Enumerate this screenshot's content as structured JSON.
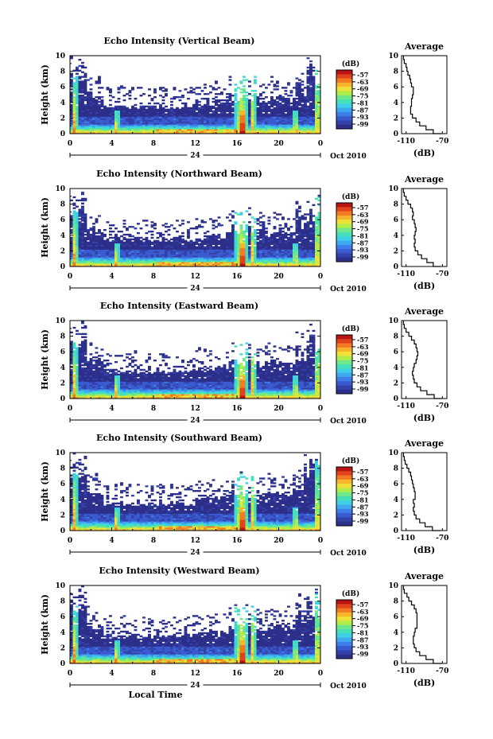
{
  "chart_data": [
    {
      "type": "heatmap",
      "title": "Echo Intensity (Vertical Beam)",
      "ylabel": "Height (km)",
      "ylim": [
        0,
        10
      ],
      "y_ticks": [
        "0",
        "2",
        "4",
        "6",
        "8",
        "10"
      ],
      "x_ticks": [
        "0",
        "4",
        "8",
        "12",
        "16",
        "20",
        "0"
      ],
      "date_marker": "24",
      "date_label": "Oct 2010",
      "colorbar": {
        "title": "(dB)",
        "ticks": [
          "-57",
          "-63",
          "-69",
          "-75",
          "-81",
          "-87",
          "-93",
          "-99"
        ]
      },
      "profile": {
        "title": "Average",
        "xlabel": "(dB)",
        "x_ticks": [
          "-110",
          "-70"
        ],
        "xlim": [
          -115,
          -65
        ],
        "heights": [
          0,
          0.5,
          1,
          1.5,
          2,
          2.5,
          3,
          3.5,
          4,
          4.5,
          5,
          5.5,
          6,
          6.5,
          7,
          7.5,
          8,
          8.5,
          9,
          9.5,
          10
        ],
        "values": [
          -71,
          -80,
          -88,
          -95,
          -99,
          -103,
          -105,
          -105,
          -104,
          -104,
          -103,
          -102,
          -102,
          -104,
          -105,
          -106,
          -108,
          -109,
          -110,
          -112,
          -113
        ]
      }
    },
    {
      "type": "heatmap",
      "title": "Echo Intensity (Northward Beam)",
      "ylabel": "Height (km)",
      "ylim": [
        0,
        10
      ],
      "y_ticks": [
        "0",
        "2",
        "4",
        "6",
        "8",
        "10"
      ],
      "x_ticks": [
        "0",
        "4",
        "8",
        "12",
        "16",
        "20",
        "0"
      ],
      "date_marker": "24",
      "date_label": "Oct 2010",
      "colorbar": {
        "title": "(dB)",
        "ticks": [
          "-57",
          "-63",
          "-69",
          "-75",
          "-81",
          "-87",
          "-93",
          "-99"
        ]
      },
      "profile": {
        "title": "Average",
        "xlabel": "(dB)",
        "x_ticks": [
          "-110",
          "-70"
        ],
        "xlim": [
          -115,
          -65
        ],
        "heights": [
          0,
          0.5,
          1,
          1.5,
          2,
          2.5,
          3,
          3.5,
          4,
          4.5,
          5,
          5.5,
          6,
          6.5,
          7,
          7.5,
          8,
          8.5,
          9,
          9.5,
          10
        ],
        "values": [
          -72,
          -80,
          -87,
          -93,
          -97,
          -100,
          -101,
          -100,
          -101,
          -100,
          -99,
          -100,
          -101,
          -103,
          -102,
          -103,
          -105,
          -108,
          -110,
          -112,
          -113
        ]
      }
    },
    {
      "type": "heatmap",
      "title": "Echo Intensity (Eastward Beam)",
      "ylabel": "Height (km)",
      "ylim": [
        0,
        10
      ],
      "y_ticks": [
        "0",
        "2",
        "4",
        "6",
        "8",
        "10"
      ],
      "x_ticks": [
        "0",
        "4",
        "8",
        "12",
        "16",
        "20",
        "0"
      ],
      "date_marker": "24",
      "date_label": "Oct 2010",
      "colorbar": {
        "title": "(dB)",
        "ticks": [
          "-57",
          "-63",
          "-69",
          "-75",
          "-81",
          "-87",
          "-93",
          "-99"
        ]
      },
      "profile": {
        "title": "Average",
        "xlabel": "(dB)",
        "x_ticks": [
          "-110",
          "-70"
        ],
        "xlim": [
          -115,
          -65
        ],
        "heights": [
          0,
          0.5,
          1,
          1.5,
          2,
          2.5,
          3,
          3.5,
          4,
          4.5,
          5,
          5.5,
          6,
          6.5,
          7,
          7.5,
          8,
          8.5,
          9,
          9.5,
          10
        ],
        "values": [
          -71,
          -79,
          -87,
          -94,
          -98,
          -101,
          -102,
          -103,
          -102,
          -101,
          -99,
          -98,
          -97,
          -98,
          -99,
          -101,
          -104,
          -107,
          -110,
          -112,
          -113
        ]
      }
    },
    {
      "type": "heatmap",
      "title": "Echo Intensity (Southward Beam)",
      "ylabel": "Height (km)",
      "ylim": [
        0,
        10
      ],
      "y_ticks": [
        "0",
        "2",
        "4",
        "6",
        "8",
        "10"
      ],
      "x_ticks": [
        "0",
        "4",
        "8",
        "12",
        "16",
        "20",
        "0"
      ],
      "date_marker": "24",
      "date_label": "Oct 2010",
      "colorbar": {
        "title": "(dB)",
        "ticks": [
          "-57",
          "-63",
          "-69",
          "-75",
          "-81",
          "-87",
          "-93",
          "-99"
        ]
      },
      "profile": {
        "title": "Average",
        "xlabel": "(dB)",
        "x_ticks": [
          "-110",
          "-70"
        ],
        "xlim": [
          -115,
          -65
        ],
        "heights": [
          0,
          0.5,
          1,
          1.5,
          2,
          2.5,
          3,
          3.5,
          4,
          4.5,
          5,
          5.5,
          6,
          6.5,
          7,
          7.5,
          8,
          8.5,
          9,
          9.5,
          10
        ],
        "values": [
          -72,
          -81,
          -89,
          -95,
          -99,
          -101,
          -102,
          -101,
          -102,
          -100,
          -100,
          -101,
          -102,
          -103,
          -104,
          -105,
          -107,
          -109,
          -111,
          -112,
          -113
        ]
      }
    },
    {
      "type": "heatmap",
      "title": "Echo Intensity (Westward Beam)",
      "ylabel": "Height (km)",
      "ylim": [
        0,
        10
      ],
      "y_ticks": [
        "0",
        "2",
        "4",
        "6",
        "8",
        "10"
      ],
      "x_ticks": [
        "0",
        "4",
        "8",
        "12",
        "16",
        "20",
        "0"
      ],
      "date_marker": "24",
      "date_label": "Oct 2010",
      "xlabel": "Local Time",
      "colorbar": {
        "title": "(dB)",
        "ticks": [
          "-57",
          "-63",
          "-69",
          "-75",
          "-81",
          "-87",
          "-93",
          "-99"
        ]
      },
      "profile": {
        "title": "Average",
        "xlabel": "(dB)",
        "x_ticks": [
          "-110",
          "-70"
        ],
        "xlim": [
          -115,
          -65
        ],
        "heights": [
          0,
          0.5,
          1,
          1.5,
          2,
          2.5,
          3,
          3.5,
          4,
          4.5,
          5,
          5.5,
          6,
          6.5,
          7,
          7.5,
          8,
          8.5,
          9,
          9.5,
          10
        ],
        "values": [
          -71,
          -80,
          -88,
          -95,
          -99,
          -101,
          -102,
          -102,
          -101,
          -100,
          -98,
          -98,
          -98,
          -98,
          -99,
          -101,
          -104,
          -107,
          -109,
          -112,
          -113
        ]
      }
    }
  ]
}
